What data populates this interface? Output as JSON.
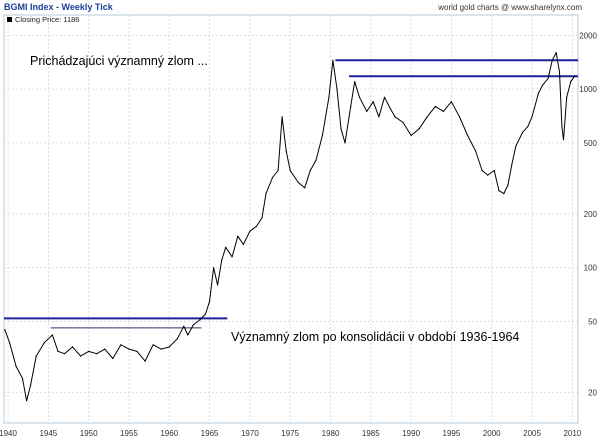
{
  "header": {
    "title": "BGMI Index - Weekly Tick",
    "source": "world gold charts @ www.sharelynx.com",
    "legend_label": "Closing Price: 1186"
  },
  "annotations": {
    "top_note": "Prichádzajúci významný zlom ...",
    "bottom_note": "Významný zlom po konsolidácii v období 1936-1964"
  },
  "colors": {
    "background": "#ffffff",
    "price_line": "#000000",
    "breakout_line": "#20209a",
    "grid": "#c9d8e8",
    "header_title": "#1c3f94",
    "axis_text": "#333333"
  },
  "chart_data": {
    "type": "line",
    "title": "BGMI Index - Weekly Tick",
    "xlabel": "",
    "ylabel": "",
    "y_scale": "log",
    "xlim": [
      1939.5,
      2010.7
    ],
    "ylim": [
      13.5,
      2600
    ],
    "grid": true,
    "legend": "top-left",
    "x_ticks": [
      1940,
      1945,
      1950,
      1955,
      1960,
      1965,
      1970,
      1975,
      1980,
      1985,
      1990,
      1995,
      2000,
      2005,
      2010
    ],
    "y_ticks": [
      20,
      50,
      100,
      200,
      500,
      1000,
      2000
    ],
    "series": [
      {
        "name": "Closing Price: 1186",
        "x": [
          1939.6,
          1940.2,
          1941.0,
          1941.8,
          1942.3,
          1942.8,
          1943.5,
          1944.5,
          1945.5,
          1946.2,
          1947.0,
          1948.0,
          1949.0,
          1950.0,
          1951.0,
          1952.0,
          1953.0,
          1954.0,
          1955.0,
          1956.0,
          1957.0,
          1958.0,
          1959.0,
          1960.0,
          1961.0,
          1961.8,
          1962.3,
          1963.0,
          1963.8,
          1964.5,
          1965.0,
          1965.5,
          1966.0,
          1966.5,
          1967.0,
          1967.8,
          1968.5,
          1969.2,
          1970.0,
          1970.8,
          1971.5,
          1972.0,
          1972.8,
          1973.5,
          1974.0,
          1974.5,
          1975.0,
          1976.0,
          1976.8,
          1977.5,
          1978.2,
          1979.0,
          1979.8,
          1980.3,
          1980.8,
          1981.3,
          1981.8,
          1982.5,
          1983.0,
          1983.6,
          1984.5,
          1985.3,
          1986.0,
          1986.7,
          1987.4,
          1988.0,
          1989.0,
          1990.0,
          1991.0,
          1992.0,
          1993.0,
          1994.0,
          1995.0,
          1996.0,
          1997.0,
          1998.0,
          1998.8,
          1999.5,
          2000.3,
          2000.9,
          2001.5,
          2002.0,
          2002.5,
          2003.0,
          2003.8,
          2004.5,
          2005.0,
          2005.8,
          2006.3,
          2007.0,
          2007.5,
          2008.0,
          2008.4,
          2008.7,
          2008.9,
          2009.3,
          2009.8,
          2010.3
        ],
        "y": [
          45,
          38,
          28,
          24,
          18,
          22,
          32,
          38,
          42,
          34,
          33,
          36,
          32,
          34,
          33,
          35,
          31,
          37,
          35,
          34,
          30,
          37,
          35,
          36,
          40,
          47,
          42,
          48,
          51,
          55,
          65,
          100,
          80,
          110,
          130,
          115,
          150,
          135,
          160,
          170,
          190,
          260,
          320,
          350,
          700,
          450,
          350,
          300,
          280,
          350,
          400,
          550,
          900,
          1450,
          1000,
          600,
          500,
          800,
          1100,
          900,
          750,
          850,
          700,
          900,
          780,
          700,
          650,
          550,
          600,
          700,
          800,
          750,
          850,
          700,
          550,
          450,
          350,
          330,
          350,
          270,
          260,
          290,
          380,
          480,
          570,
          620,
          700,
          950,
          1050,
          1150,
          1450,
          1600,
          1250,
          620,
          520,
          900,
          1100,
          1186
        ]
      }
    ],
    "reference_lines": [
      {
        "y": 52,
        "x_start": 1939.5,
        "x_end": 1967.2
      },
      {
        "y": 46,
        "x_start": 1945.3,
        "x_end": 1964.0
      },
      {
        "y": 1450,
        "x_start": 1980.6,
        "x_end": 2010.7
      },
      {
        "y": 1180,
        "x_start": 1982.3,
        "x_end": 2010.7
      }
    ]
  }
}
